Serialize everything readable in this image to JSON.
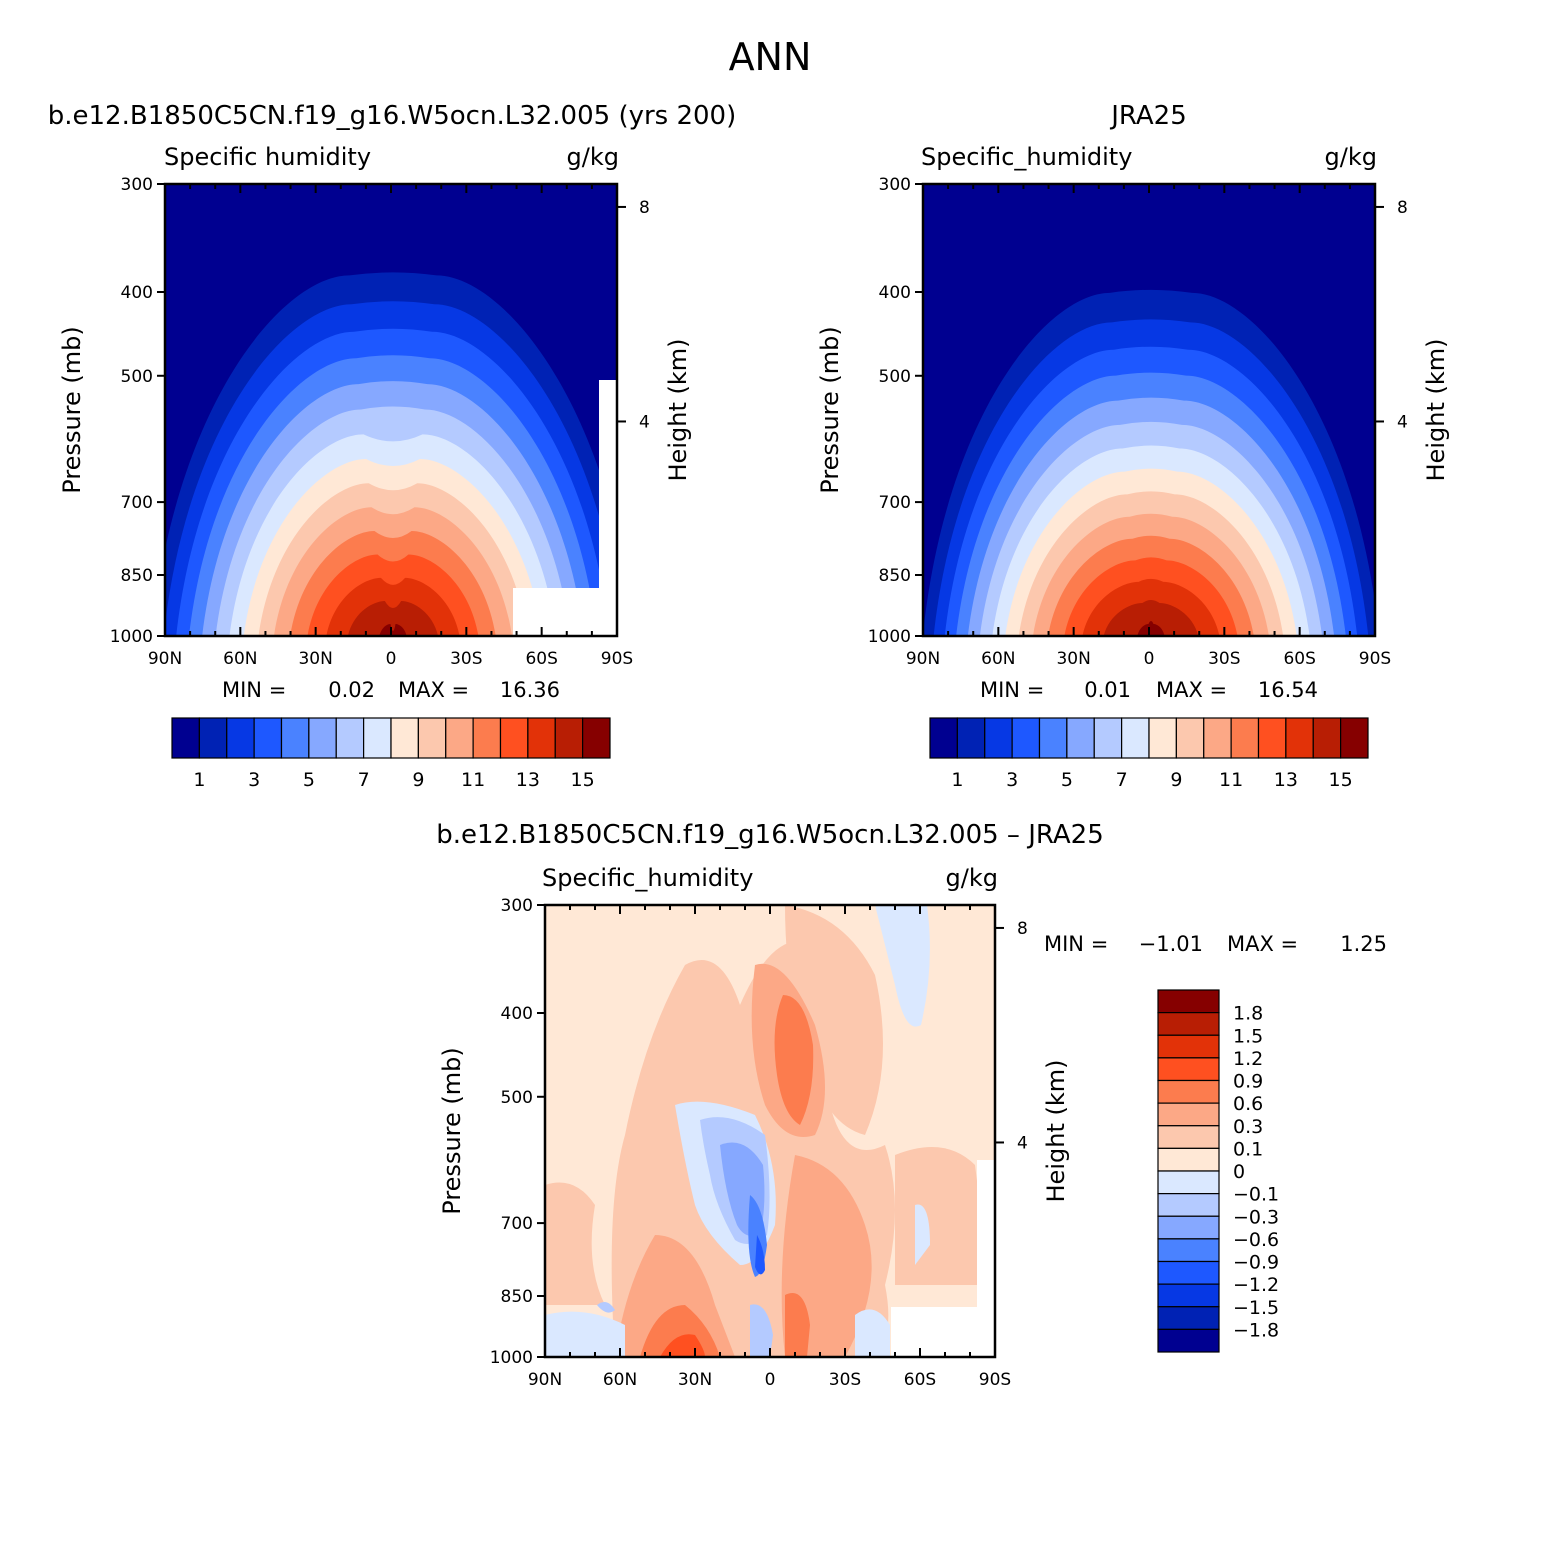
{
  "figure": {
    "title": "ANN",
    "background": "#ffffff"
  },
  "chart_data": [
    {
      "type": "heatmap",
      "panel": "model",
      "title": "b.e12.B1850C5CN.f19_g16.W5ocn.L32.005 (yrs 200)",
      "variable": "Specific humidity",
      "units": "g/kg",
      "xlabel": "",
      "ylabel": "Pressure (mb)",
      "ylabel_right": "Height (km)",
      "x_ticks": [
        "90N",
        "60N",
        "30N",
        "0",
        "30S",
        "60S",
        "90S"
      ],
      "x_range": [
        90,
        -90
      ],
      "y_ticks": [
        "300",
        "400",
        "500",
        "700",
        "850",
        "1000"
      ],
      "y_range": [
        300,
        1000
      ],
      "y_scale": "log",
      "y_right_ticks": [
        "8",
        "4"
      ],
      "min_label": "MIN =",
      "min_value": "0.02",
      "max_label": "MAX =",
      "max_value": "16.36",
      "data_min": 0.02,
      "data_max": 16.36,
      "peak_lat": 0,
      "missing_region_note": "no data below surface near Antarctica",
      "colorbar": {
        "orientation": "horizontal",
        "labels": [
          "1",
          "3",
          "5",
          "7",
          "9",
          "11",
          "13",
          "15"
        ],
        "levels": [
          0,
          1,
          2,
          3,
          4,
          5,
          6,
          7,
          8,
          9,
          10,
          11,
          12,
          13,
          14,
          15,
          16
        ]
      }
    },
    {
      "type": "heatmap",
      "panel": "obs",
      "title": "JRA25",
      "variable": "Specific_humidity",
      "units": "g/kg",
      "xlabel": "",
      "ylabel": "Pressure (mb)",
      "ylabel_right": "Height (km)",
      "x_ticks": [
        "90N",
        "60N",
        "30N",
        "0",
        "30S",
        "60S",
        "90S"
      ],
      "x_range": [
        90,
        -90
      ],
      "y_ticks": [
        "300",
        "400",
        "500",
        "700",
        "850",
        "1000"
      ],
      "y_range": [
        300,
        1000
      ],
      "y_scale": "log",
      "y_right_ticks": [
        "8",
        "4"
      ],
      "min_label": "MIN =",
      "min_value": "0.01",
      "max_label": "MAX =",
      "max_value": "16.54",
      "data_min": 0.01,
      "data_max": 16.54,
      "peak_lat": 0,
      "colorbar": {
        "orientation": "horizontal",
        "labels": [
          "1",
          "3",
          "5",
          "7",
          "9",
          "11",
          "13",
          "15"
        ],
        "levels": [
          0,
          1,
          2,
          3,
          4,
          5,
          6,
          7,
          8,
          9,
          10,
          11,
          12,
          13,
          14,
          15,
          16
        ]
      }
    },
    {
      "type": "heatmap",
      "panel": "diff",
      "title": "b.e12.B1850C5CN.f19_g16.W5ocn.L32.005 – JRA25",
      "variable": "Specific_humidity",
      "units": "g/kg",
      "xlabel": "",
      "ylabel": "Pressure (mb)",
      "ylabel_right": "Height (km)",
      "x_ticks": [
        "90N",
        "60N",
        "30N",
        "0",
        "30S",
        "60S",
        "90S"
      ],
      "x_range": [
        90,
        -90
      ],
      "y_ticks": [
        "300",
        "400",
        "500",
        "700",
        "850",
        "1000"
      ],
      "y_range": [
        300,
        1000
      ],
      "y_scale": "log",
      "y_right_ticks": [
        "8",
        "4"
      ],
      "min_label": "MIN =",
      "min_value": "−1.01",
      "max_label": "MAX =",
      "max_value": "1.25",
      "data_min": -1.01,
      "data_max": 1.25,
      "colorbar": {
        "orientation": "vertical",
        "labels": [
          "1.8",
          "1.5",
          "1.2",
          "0.9",
          "0.6",
          "0.3",
          "0.1",
          "0",
          "−0.1",
          "−0.3",
          "−0.6",
          "−0.9",
          "−1.2",
          "−1.5",
          "−1.8"
        ],
        "levels": [
          -1.8,
          -1.5,
          -1.2,
          -0.9,
          -0.6,
          -0.3,
          -0.1,
          0,
          0.1,
          0.3,
          0.6,
          0.9,
          1.2,
          1.5,
          1.8
        ]
      }
    }
  ],
  "palettes": {
    "sequential": [
      "#000090",
      "#0022b4",
      "#0638e4",
      "#1e58ff",
      "#4a82ff",
      "#86a8ff",
      "#b4caff",
      "#dae8ff",
      "#ffe8d6",
      "#fcc8ae",
      "#fca886",
      "#fc7c4e",
      "#ff5020",
      "#e23208",
      "#b81e04",
      "#860000"
    ],
    "diverging": [
      "#000090",
      "#0022b4",
      "#0638e4",
      "#1e58ff",
      "#4a82ff",
      "#86a8ff",
      "#b4caff",
      "#dae8ff",
      "#ffe8d6",
      "#fcc8ae",
      "#fca886",
      "#fc7c4e",
      "#ff5020",
      "#e23208",
      "#b81e04",
      "#860000"
    ]
  }
}
